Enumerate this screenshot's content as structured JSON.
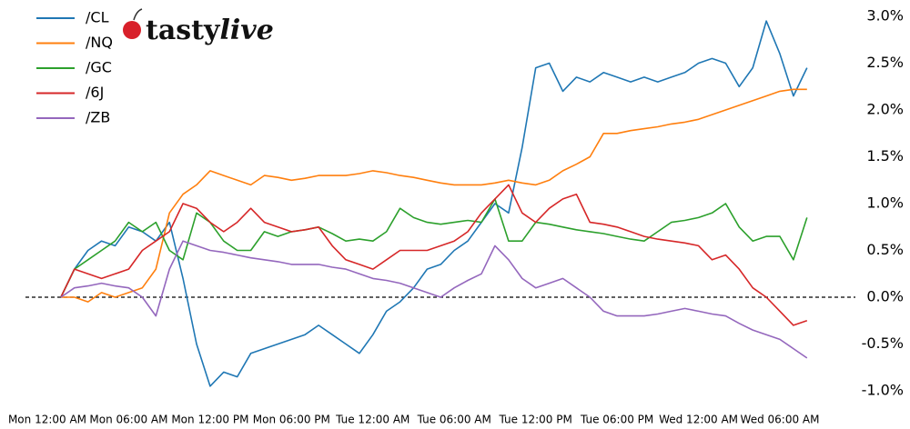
{
  "logo": {
    "part1": "tasty",
    "part2": "live"
  },
  "chart_data": {
    "type": "line",
    "x": [
      "Mon 01:00 AM",
      "Mon 02:00 AM",
      "Mon 03:00 AM",
      "Mon 04:00 AM",
      "Mon 05:00 AM",
      "Mon 06:00 AM",
      "Mon 07:00 AM",
      "Mon 08:00 AM",
      "Mon 09:00 AM",
      "Mon 10:00 AM",
      "Mon 11:00 AM",
      "Mon 12:00 PM",
      "Mon 01:00 PM",
      "Mon 02:00 PM",
      "Mon 03:00 PM",
      "Mon 04:00 PM",
      "Mon 05:00 PM",
      "Mon 06:00 PM",
      "Mon 07:00 PM",
      "Mon 08:00 PM",
      "Mon 09:00 PM",
      "Mon 10:00 PM",
      "Mon 11:00 PM",
      "Tue 12:00 AM",
      "Tue 01:00 AM",
      "Tue 02:00 AM",
      "Tue 03:00 AM",
      "Tue 04:00 AM",
      "Tue 05:00 AM",
      "Tue 06:00 AM",
      "Tue 07:00 AM",
      "Tue 08:00 AM",
      "Tue 09:00 AM",
      "Tue 10:00 AM",
      "Tue 11:00 AM",
      "Tue 12:00 PM",
      "Tue 01:00 PM",
      "Tue 02:00 PM",
      "Tue 03:00 PM",
      "Tue 04:00 PM",
      "Tue 05:00 PM",
      "Tue 06:00 PM",
      "Tue 07:00 PM",
      "Tue 08:00 PM",
      "Tue 09:00 PM",
      "Tue 10:00 PM",
      "Tue 11:00 PM",
      "Wed 12:00 AM",
      "Wed 01:00 AM",
      "Wed 02:00 AM",
      "Wed 03:00 AM",
      "Wed 04:00 AM",
      "Wed 05:00 AM",
      "Wed 06:00 AM",
      "Wed 07:00 AM",
      "Wed 08:00 AM"
    ],
    "series": [
      {
        "name": "/CL",
        "color": "#1f77b4",
        "values": [
          0,
          0.3,
          0.5,
          0.6,
          0.55,
          0.75,
          0.7,
          0.6,
          0.8,
          0.2,
          -0.5,
          -0.95,
          -0.8,
          -0.85,
          -0.6,
          -0.55,
          -0.5,
          -0.45,
          -0.4,
          -0.3,
          -0.4,
          -0.5,
          -0.6,
          -0.4,
          -0.15,
          -0.05,
          0.1,
          0.3,
          0.35,
          0.5,
          0.6,
          0.8,
          1.0,
          0.9,
          1.6,
          2.45,
          2.5,
          2.2,
          2.35,
          2.3,
          2.4,
          2.35,
          2.3,
          2.35,
          2.3,
          2.35,
          2.4,
          2.5,
          2.55,
          2.5,
          2.25,
          2.45,
          2.95,
          2.6,
          2.15,
          2.45
        ]
      },
      {
        "name": "/NQ",
        "color": "#ff7f0e",
        "values": [
          0,
          0,
          -0.05,
          0.05,
          0,
          0.05,
          0.1,
          0.3,
          0.9,
          1.1,
          1.2,
          1.35,
          1.3,
          1.25,
          1.2,
          1.3,
          1.28,
          1.25,
          1.27,
          1.3,
          1.3,
          1.3,
          1.32,
          1.35,
          1.33,
          1.3,
          1.28,
          1.25,
          1.22,
          1.2,
          1.2,
          1.2,
          1.22,
          1.25,
          1.22,
          1.2,
          1.25,
          1.35,
          1.42,
          1.5,
          1.75,
          1.75,
          1.78,
          1.8,
          1.82,
          1.85,
          1.87,
          1.9,
          1.95,
          2.0,
          2.05,
          2.1,
          2.15,
          2.2,
          2.22,
          2.22
        ]
      },
      {
        "name": "/GC",
        "color": "#2ca02c",
        "values": [
          0,
          0.3,
          0.4,
          0.5,
          0.6,
          0.8,
          0.7,
          0.8,
          0.5,
          0.4,
          0.9,
          0.8,
          0.6,
          0.5,
          0.5,
          0.7,
          0.65,
          0.7,
          0.72,
          0.75,
          0.68,
          0.6,
          0.62,
          0.6,
          0.7,
          0.95,
          0.85,
          0.8,
          0.78,
          0.8,
          0.82,
          0.8,
          1.05,
          0.6,
          0.6,
          0.8,
          0.78,
          0.75,
          0.72,
          0.7,
          0.68,
          0.65,
          0.62,
          0.6,
          0.7,
          0.8,
          0.82,
          0.85,
          0.9,
          1.0,
          0.75,
          0.6,
          0.65,
          0.65,
          0.4,
          0.85
        ]
      },
      {
        "name": "/6J",
        "color": "#d62728",
        "values": [
          0,
          0.3,
          0.25,
          0.2,
          0.25,
          0.3,
          0.5,
          0.6,
          0.7,
          1.0,
          0.95,
          0.8,
          0.7,
          0.8,
          0.95,
          0.8,
          0.75,
          0.7,
          0.72,
          0.75,
          0.55,
          0.4,
          0.35,
          0.3,
          0.4,
          0.5,
          0.5,
          0.5,
          0.55,
          0.6,
          0.7,
          0.9,
          1.05,
          1.2,
          0.9,
          0.8,
          0.95,
          1.05,
          1.1,
          0.8,
          0.78,
          0.75,
          0.7,
          0.65,
          0.62,
          0.6,
          0.58,
          0.55,
          0.4,
          0.45,
          0.3,
          0.1,
          0.0,
          -0.15,
          -0.3,
          -0.25
        ]
      },
      {
        "name": "/ZB",
        "color": "#9467bd",
        "values": [
          0,
          0.1,
          0.12,
          0.15,
          0.12,
          0.1,
          0.0,
          -0.2,
          0.3,
          0.6,
          0.55,
          0.5,
          0.48,
          0.45,
          0.42,
          0.4,
          0.38,
          0.35,
          0.35,
          0.35,
          0.32,
          0.3,
          0.25,
          0.2,
          0.18,
          0.15,
          0.1,
          0.05,
          0.0,
          0.1,
          0.18,
          0.25,
          0.55,
          0.4,
          0.2,
          0.1,
          0.15,
          0.2,
          0.1,
          0.0,
          -0.15,
          -0.2,
          -0.2,
          -0.2,
          -0.18,
          -0.15,
          -0.12,
          -0.15,
          -0.18,
          -0.2,
          -0.28,
          -0.35,
          -0.4,
          -0.45,
          -0.55,
          -0.65
        ]
      }
    ],
    "xticks": [
      "Mon 12:00 AM",
      "Mon 06:00 AM",
      "Mon 12:00 PM",
      "Mon 06:00 PM",
      "Tue 12:00 AM",
      "Tue 06:00 AM",
      "Tue 12:00 PM",
      "Tue 06:00 PM",
      "Wed 12:00 AM",
      "Wed 06:00 AM"
    ],
    "ylim": [
      -1.0,
      3.0
    ],
    "yticks": [
      {
        "value": 3,
        "label": "3.0%"
      },
      {
        "value": 2.5,
        "label": "2.5%"
      },
      {
        "value": 2,
        "label": "2.0%"
      },
      {
        "value": 1.5,
        "label": "1.5%"
      },
      {
        "value": 1,
        "label": "1.0%"
      },
      {
        "value": 0.5,
        "label": "0.5%"
      },
      {
        "value": 0,
        "label": "0.0%"
      },
      {
        "value": -0.5,
        "label": "-0.5%"
      },
      {
        "value": -1,
        "label": "-1.0%"
      }
    ],
    "hline": 0,
    "legend": "upper-left"
  }
}
